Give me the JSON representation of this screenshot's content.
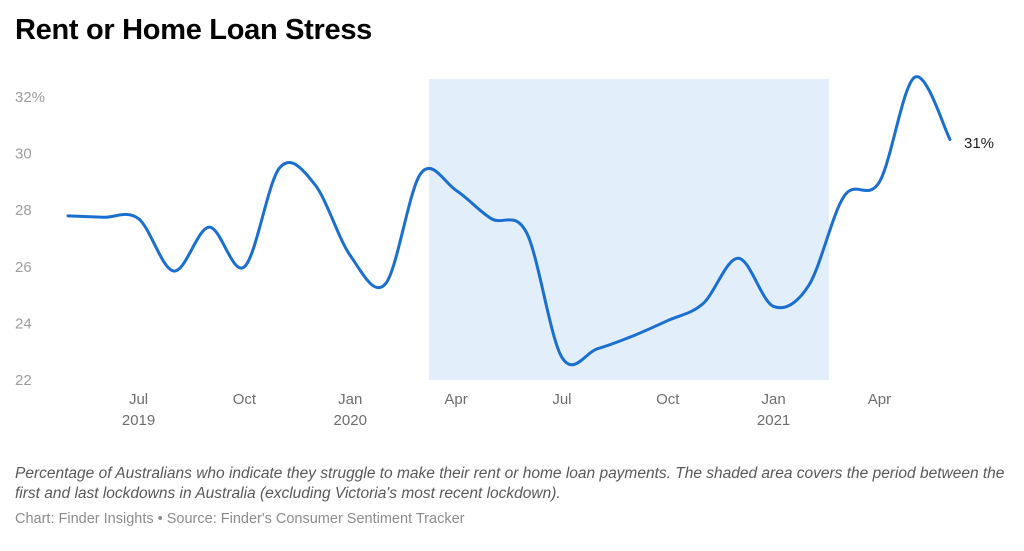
{
  "title": "Rent or Home Loan Stress",
  "caption": "Percentage of Australians who indicate they struggle to make their rent or home loan payments. The shaded area covers the period between the first and last lockdowns in Australia (excluding Victoria's most recent lockdown).",
  "credit": "Chart: Finder Insights • Source: Finder's Consumer Sentiment Tracker",
  "colors": {
    "line": "#1a6fd1",
    "shade": "#e3eefb",
    "ytick": "#9e9e9e",
    "xtick": "#6e6e6e"
  },
  "chart_data": {
    "type": "line",
    "title": "Rent or Home Loan Stress",
    "xlabel": "",
    "ylabel": "",
    "ylim": [
      22,
      32
    ],
    "grid": false,
    "legend": "none",
    "y_ticks": [
      "22",
      "24",
      "26",
      "28",
      "30",
      "32%"
    ],
    "x_ticks": [
      {
        "label": "Jul",
        "year": "2019"
      },
      {
        "label": "Oct",
        "year": ""
      },
      {
        "label": "Jan",
        "year": "2020"
      },
      {
        "label": "Apr",
        "year": ""
      },
      {
        "label": "Jul",
        "year": ""
      },
      {
        "label": "Oct",
        "year": ""
      },
      {
        "label": "Jan",
        "year": "2021"
      },
      {
        "label": "Apr",
        "year": ""
      }
    ],
    "x": [
      "May 2019",
      "Jun 2019",
      "Jul 2019",
      "Aug 2019",
      "Sep 2019",
      "Oct 2019",
      "Nov 2019",
      "Dec 2019",
      "Jan 2020",
      "Feb 2020",
      "Mar 2020",
      "Apr 2020",
      "May 2020",
      "Jun 2020",
      "Jul 2020",
      "Aug 2020",
      "Sep 2020",
      "Oct 2020",
      "Nov 2020",
      "Dec 2020",
      "Jan 2021",
      "Feb 2021",
      "Mar 2021",
      "Apr 2021",
      "May 2021",
      "Jun 2021"
    ],
    "series": [
      {
        "name": "Rent or home loan stress (%)",
        "values": [
          27.8,
          27.75,
          27.7,
          25.85,
          27.4,
          26.0,
          29.5,
          28.9,
          26.4,
          25.4,
          29.3,
          28.7,
          27.7,
          27.2,
          22.8,
          23.1,
          23.55,
          24.1,
          24.7,
          26.3,
          24.6,
          25.35,
          28.5,
          29.0,
          32.7,
          30.5
        ]
      }
    ],
    "annotations": [
      {
        "type": "shaded_region",
        "from": "Mar 2020",
        "to": "Feb 2021",
        "description": "Period between first and last lockdowns in Australia"
      },
      {
        "type": "end_label",
        "text": "31%"
      }
    ]
  }
}
